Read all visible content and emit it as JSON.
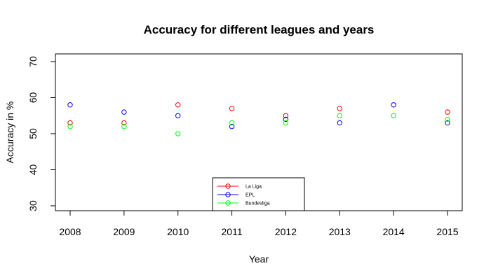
{
  "chart_data": {
    "type": "scatter",
    "title": "Accuracy for different leagues and years",
    "xlabel": "Year",
    "ylabel": "Accuracy in %",
    "x": [
      2008,
      2009,
      2010,
      2011,
      2012,
      2013,
      2014,
      2015
    ],
    "x_tick_labels": [
      "2008",
      "2009",
      "2010",
      "2011",
      "2012",
      "2013",
      "2014",
      "2015"
    ],
    "y_ticks": [
      30,
      40,
      50,
      60,
      70
    ],
    "y_tick_labels": [
      "30",
      "40",
      "50",
      "60",
      "70"
    ],
    "xlim": [
      2008,
      2015
    ],
    "ylim": [
      30,
      70
    ],
    "grid": false,
    "legend_position": "bottom-center",
    "series": [
      {
        "name": "La Liga",
        "color": "#ff0000",
        "values": [
          53,
          53,
          58,
          57,
          55,
          57,
          null,
          56
        ]
      },
      {
        "name": "EPL",
        "color": "#0000ff",
        "values": [
          58,
          56,
          55,
          52,
          54,
          53,
          58,
          53
        ]
      },
      {
        "name": "Bundesliga",
        "color": "#00ff00",
        "values": [
          52,
          52,
          50,
          53,
          53,
          55,
          55,
          54
        ]
      }
    ]
  }
}
